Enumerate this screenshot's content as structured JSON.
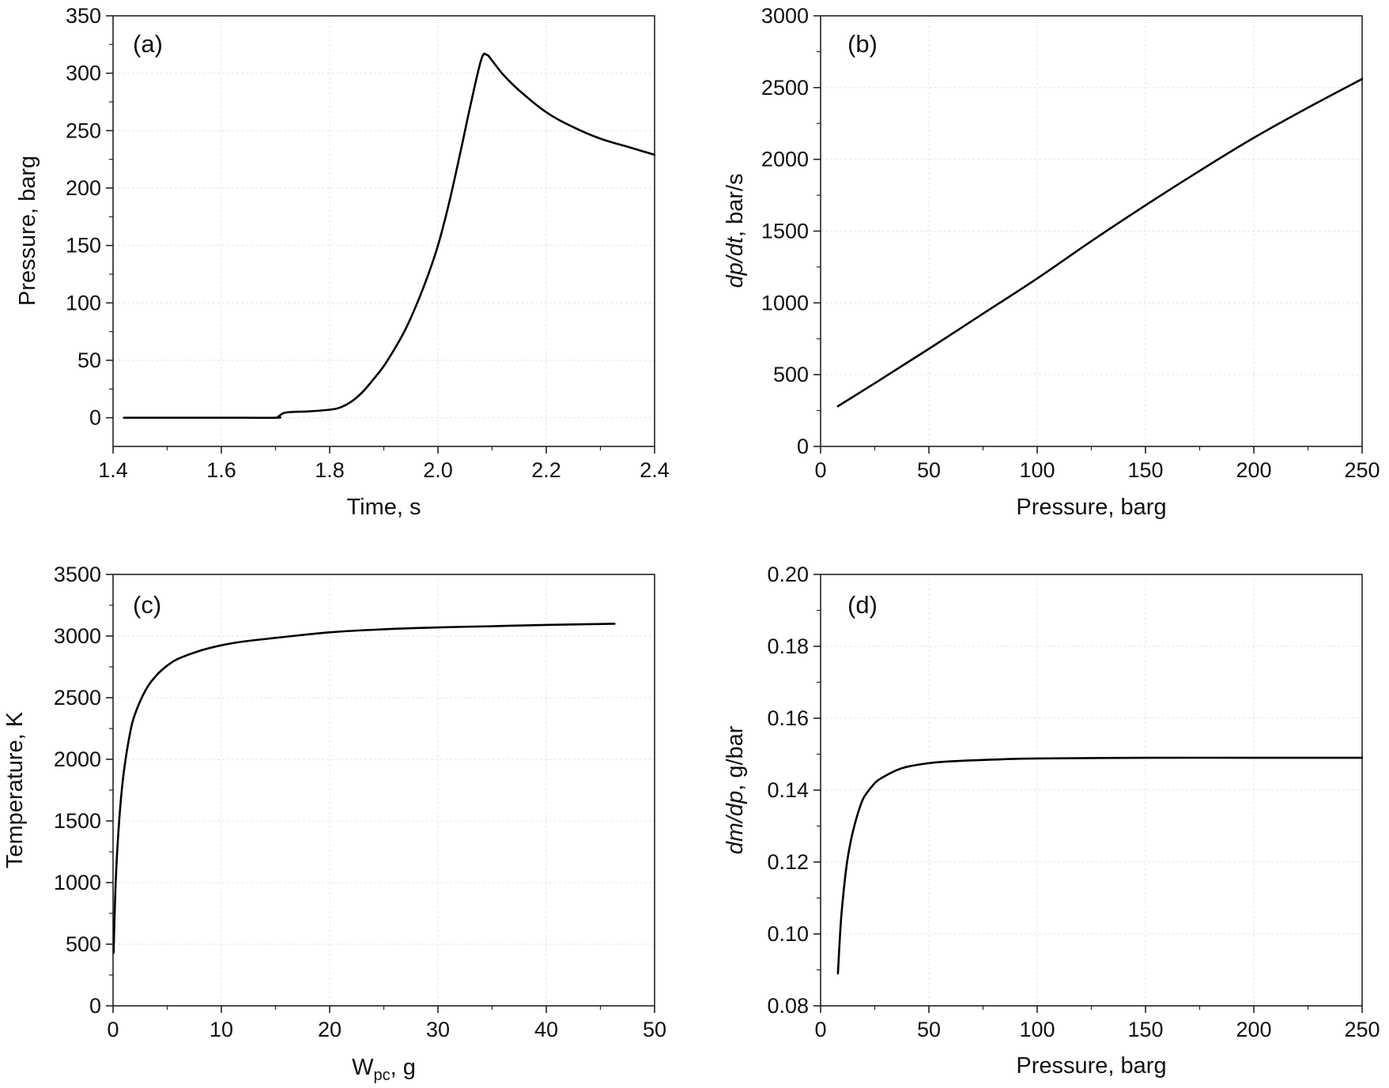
{
  "chart_data": [
    {
      "type": "line",
      "panel_label": "(a)",
      "xlabel": "Time, s",
      "ylabel": "Pressure, barg",
      "xlim": [
        1.4,
        2.4
      ],
      "ylim": [
        -25,
        350
      ],
      "xticks": [
        1.4,
        1.6,
        1.8,
        2.0,
        2.2,
        2.4
      ],
      "xtick_labels": [
        "1.4",
        "1.6",
        "1.8",
        "2.0",
        "2.2",
        "2.4"
      ],
      "yticks": [
        0,
        50,
        100,
        150,
        200,
        250,
        300,
        350
      ],
      "ytick_labels": [
        "0",
        "50",
        "100",
        "150",
        "200",
        "250",
        "300",
        "350"
      ],
      "grid": true,
      "series": [
        {
          "x": [
            1.42,
            1.5,
            1.6,
            1.7,
            1.705,
            1.715,
            1.73,
            1.76,
            1.8,
            1.82,
            1.84,
            1.86,
            1.88,
            1.9,
            1.92,
            1.94,
            1.96,
            1.98,
            2.0,
            2.02,
            2.04,
            2.06,
            2.08,
            2.09,
            2.1,
            2.12,
            2.15,
            2.2,
            2.25,
            2.3,
            2.35,
            2.4
          ],
          "y": [
            0,
            0,
            0,
            0,
            1,
            4,
            5,
            5.5,
            7,
            9,
            14,
            22,
            33,
            45,
            60,
            77,
            98,
            122,
            150,
            186,
            228,
            272,
            312,
            316,
            311,
            299,
            285,
            266,
            253,
            243,
            236,
            229
          ]
        }
      ]
    },
    {
      "type": "line",
      "panel_label": "(b)",
      "xlabel": "Pressure, barg",
      "ylabel_italic": "dp/dt",
      "ylabel_rest": ", bar/s",
      "xlim": [
        0,
        250
      ],
      "ylim": [
        0,
        3000
      ],
      "xticks": [
        0,
        50,
        100,
        150,
        200,
        250
      ],
      "xtick_labels": [
        "0",
        "50",
        "100",
        "150",
        "200",
        "250"
      ],
      "yticks": [
        0,
        500,
        1000,
        1500,
        2000,
        2500,
        3000
      ],
      "ytick_labels": [
        "0",
        "500",
        "1000",
        "1500",
        "2000",
        "2500",
        "3000"
      ],
      "grid": true,
      "series": [
        {
          "x": [
            8,
            25,
            50,
            75,
            100,
            125,
            150,
            175,
            200,
            225,
            250
          ],
          "y": [
            280,
            440,
            680,
            925,
            1170,
            1430,
            1680,
            1920,
            2150,
            2360,
            2560
          ]
        }
      ]
    },
    {
      "type": "line",
      "panel_label": "(c)",
      "xlabel_main": "W",
      "xlabel_sub": "pc",
      "xlabel_rest": ", g",
      "ylabel": "Temperature, K",
      "xlim": [
        0,
        50
      ],
      "ylim": [
        0,
        3500
      ],
      "xticks": [
        0,
        10,
        20,
        30,
        40,
        50
      ],
      "xtick_labels": [
        "0",
        "10",
        "20",
        "30",
        "40",
        "50"
      ],
      "yticks": [
        0,
        500,
        1000,
        1500,
        2000,
        2500,
        3000,
        3500
      ],
      "ytick_labels": [
        "0",
        "500",
        "1000",
        "1500",
        "2000",
        "2500",
        "3000",
        "3500"
      ],
      "grid": true,
      "series": [
        {
          "x": [
            0.05,
            0.2,
            0.4,
            0.7,
            1.0,
            1.5,
            2.0,
            3.0,
            4.0,
            5.0,
            6.0,
            8.0,
            10,
            12,
            15,
            20,
            25,
            30,
            35,
            40,
            46.3
          ],
          "y": [
            430,
            900,
            1280,
            1650,
            1900,
            2180,
            2360,
            2560,
            2680,
            2760,
            2815,
            2880,
            2925,
            2955,
            2985,
            3030,
            3055,
            3070,
            3080,
            3090,
            3100
          ]
        }
      ]
    },
    {
      "type": "line",
      "panel_label": "(d)",
      "xlabel": "Pressure, barg",
      "ylabel_italic": "dm/dp",
      "ylabel_rest": ", g/bar",
      "xlim": [
        0,
        250
      ],
      "ylim": [
        0.08,
        0.2
      ],
      "xticks": [
        0,
        50,
        100,
        150,
        200,
        250
      ],
      "xtick_labels": [
        "0",
        "50",
        "100",
        "150",
        "200",
        "250"
      ],
      "yticks": [
        0.08,
        0.1,
        0.12,
        0.14,
        0.16,
        0.18,
        0.2
      ],
      "ytick_labels": [
        "0.08",
        "0.10",
        "0.12",
        "0.14",
        "0.16",
        "0.18",
        "0.20"
      ],
      "grid": true,
      "series": [
        {
          "x": [
            8,
            9,
            10,
            12,
            14,
            16,
            18,
            20,
            23,
            26,
            30,
            35,
            40,
            50,
            60,
            80,
            100,
            150,
            200,
            250
          ],
          "y": [
            0.089,
            0.1,
            0.108,
            0.119,
            0.126,
            0.131,
            0.135,
            0.138,
            0.1405,
            0.1425,
            0.144,
            0.1455,
            0.1465,
            0.1475,
            0.148,
            0.1485,
            0.1488,
            0.149,
            0.149,
            0.149
          ]
        }
      ]
    }
  ]
}
